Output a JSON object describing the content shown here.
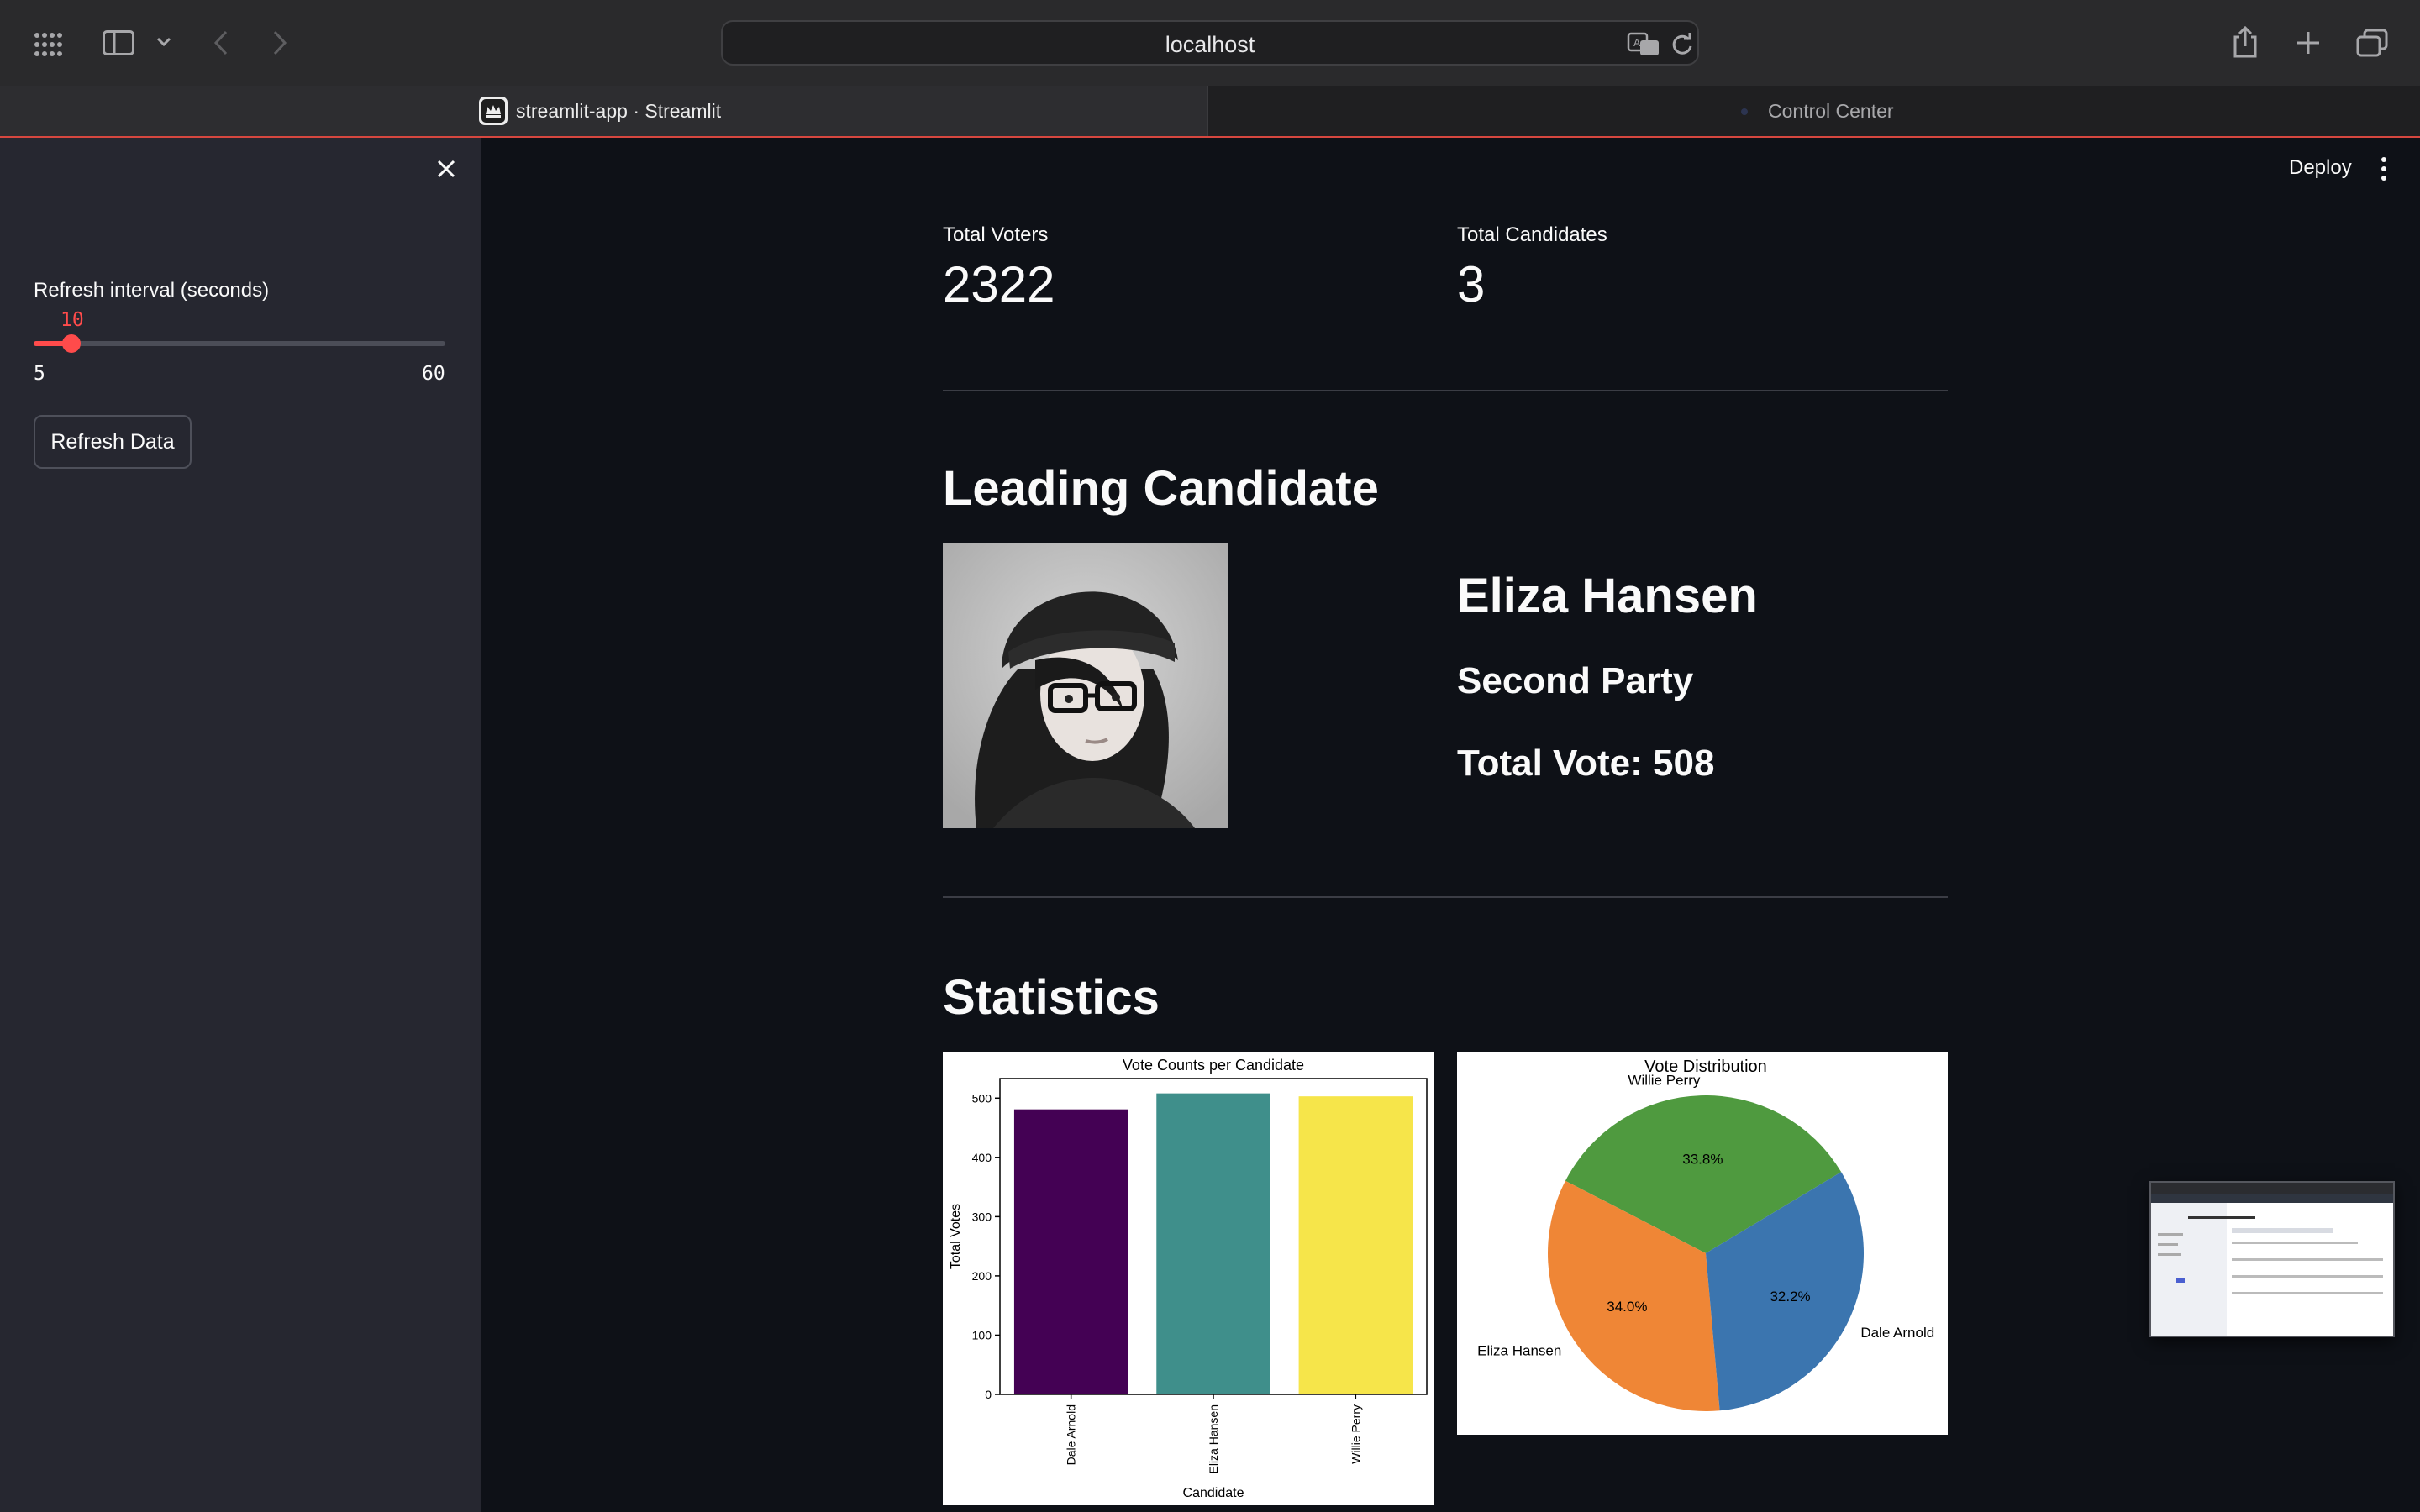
{
  "browser": {
    "url": "localhost",
    "tabs": [
      {
        "label": "streamlit-app · Streamlit",
        "active": true
      },
      {
        "label": "Control Center",
        "active": false
      }
    ]
  },
  "sidebar": {
    "slider": {
      "label": "Refresh interval (seconds)",
      "value": "10",
      "min": "5",
      "max": "60",
      "fraction": 0.0909
    },
    "refresh_button": "Refresh Data"
  },
  "header": {
    "deploy_label": "Deploy"
  },
  "metrics": [
    {
      "label": "Total Voters",
      "value": "2322"
    },
    {
      "label": "Total Candidates",
      "value": "3"
    }
  ],
  "leading": {
    "heading": "Leading Candidate",
    "name": "Eliza Hansen",
    "party": "Second Party",
    "votes": "Total Vote: 508"
  },
  "statistics": {
    "heading": "Statistics"
  },
  "chart_data": [
    {
      "type": "bar",
      "title": "Vote Counts per Candidate",
      "xlabel": "Candidate",
      "ylabel": "Total Votes",
      "categories": [
        "Dale Arnold",
        "Eliza Hansen",
        "Willie Perry"
      ],
      "values": [
        481,
        508,
        503
      ],
      "colors": [
        "#440154",
        "#3f8f8b",
        "#f6e54a"
      ],
      "ylim": [
        0,
        533
      ],
      "yticks": [
        "0",
        "100",
        "200",
        "300",
        "400",
        "500"
      ]
    },
    {
      "type": "pie",
      "title": "Vote Distribution",
      "labels": [
        "Willie Perry",
        "Eliza Hansen",
        "Dale Arnold"
      ],
      "percent_labels": [
        "33.8%",
        "34.0%",
        "32.2%"
      ],
      "values": [
        33.8,
        34.0,
        32.2
      ],
      "colors": [
        "#4f9a3f",
        "#ef8636",
        "#3b75af"
      ]
    }
  ]
}
